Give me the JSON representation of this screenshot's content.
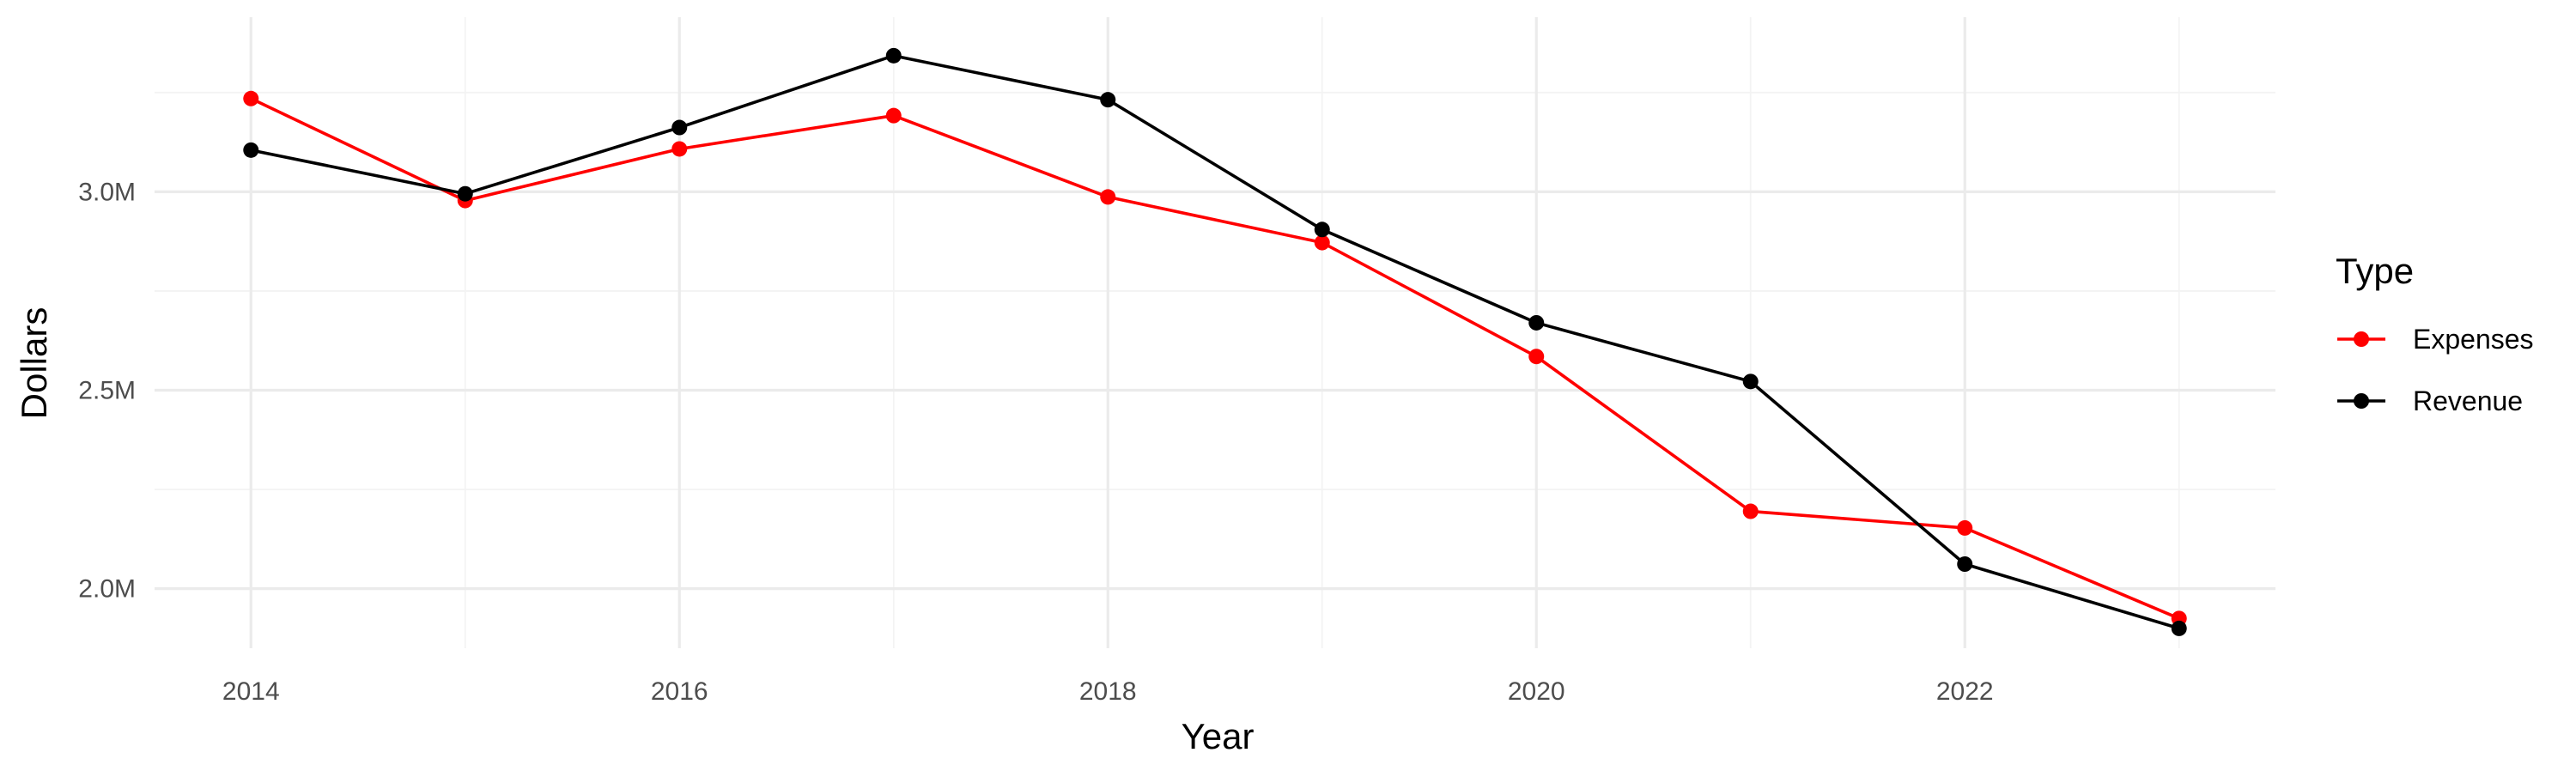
{
  "chart_data": {
    "type": "line",
    "title": "",
    "xlabel": "Year",
    "ylabel": "Dollars",
    "x": [
      2014,
      2015,
      2016,
      2017,
      2018,
      2019,
      2020,
      2021,
      2022,
      2023
    ],
    "x_ticks": [
      2014,
      2016,
      2018,
      2020,
      2022
    ],
    "x_tick_labels": [
      "2014",
      "2016",
      "2018",
      "2020",
      "2022"
    ],
    "xlim": [
      2013.55,
      2023.45
    ],
    "y_ticks": [
      2000000,
      2500000,
      3000000
    ],
    "y_tick_labels": [
      "2.0M",
      "2.5M",
      "3.0M"
    ],
    "ylim": [
      1850000,
      3440000
    ],
    "grid": true,
    "legend": {
      "title": "Type",
      "position": "right"
    },
    "series": [
      {
        "name": "Expenses",
        "color": "#ff0000",
        "values": [
          3235000,
          2978000,
          3108000,
          3192000,
          2987000,
          2872000,
          2585000,
          2195000,
          2153000,
          1925000
        ]
      },
      {
        "name": "Revenue",
        "color": "#000000",
        "values": [
          3105000,
          2995000,
          3162000,
          3343000,
          3232000,
          2905000,
          2670000,
          2522000,
          2062000,
          1900000
        ]
      }
    ]
  }
}
